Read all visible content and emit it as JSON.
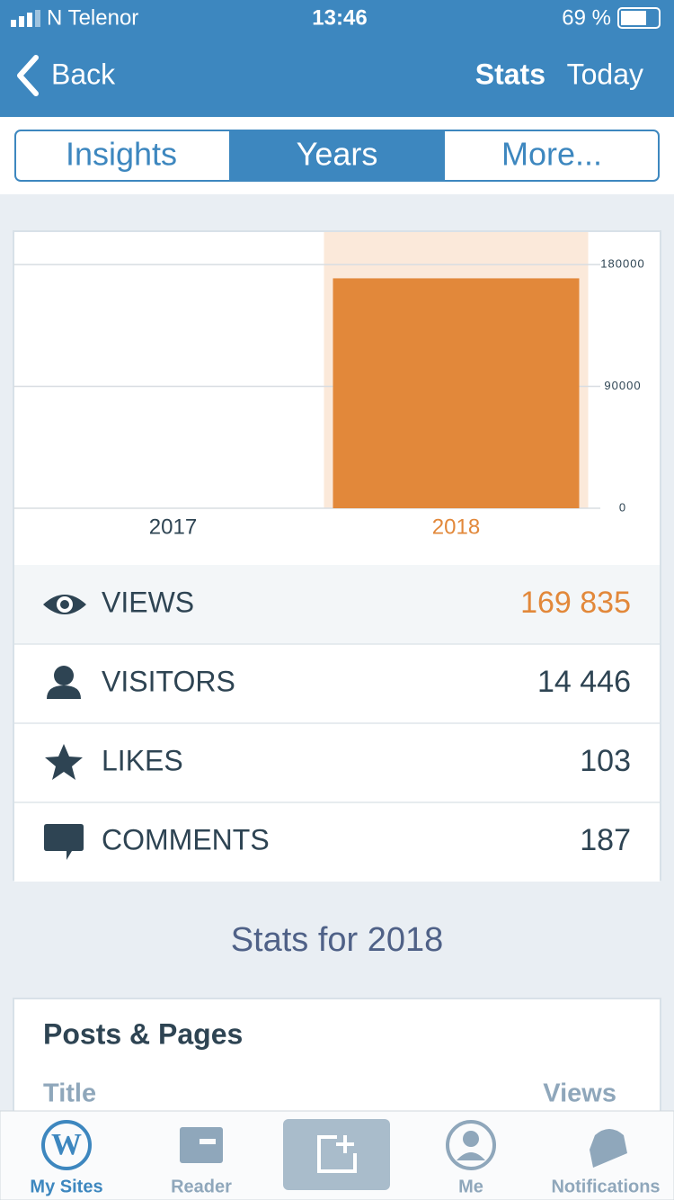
{
  "status_bar": {
    "carrier": "N Telenor",
    "time": "13:46",
    "battery": "69 %"
  },
  "nav": {
    "back": "Back",
    "title": "Stats",
    "right": "Today"
  },
  "tabs": [
    "Insights",
    "Years",
    "More..."
  ],
  "chart_data": {
    "type": "bar",
    "categories": [
      "2017",
      "2018"
    ],
    "values": [
      0,
      169835
    ],
    "color": "#e2883a",
    "highlight_color": "#fbe9da",
    "highlight_label_color": "#e2883a",
    "ylim": [
      0,
      204000
    ],
    "yticks": [
      0,
      90000,
      180000
    ],
    "grid": true
  },
  "stats": [
    {
      "label": "VIEWS",
      "value": "169 835"
    },
    {
      "label": "VISITORS",
      "value": "14 446"
    },
    {
      "label": "LIKES",
      "value": "103"
    },
    {
      "label": "COMMENTS",
      "value": "187"
    }
  ],
  "section_title": "Stats for 2018",
  "card": {
    "title": "Posts & Pages",
    "columns": [
      "Title",
      "Views"
    ]
  },
  "tab_bar": [
    "My Sites",
    "Reader",
    "Me",
    "Notifications"
  ]
}
